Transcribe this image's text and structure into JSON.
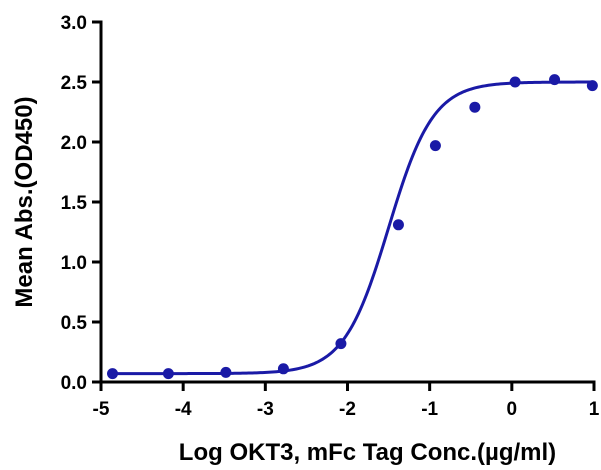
{
  "chart_data": {
    "type": "scatter",
    "title": "",
    "xlabel": "Log OKT3, mFc Tag Conc.(µg/ml)",
    "ylabel": "Mean Abs.(OD450)",
    "xlim": [
      -5,
      1
    ],
    "ylim": [
      0,
      3.0
    ],
    "x_ticks": [
      "-5",
      "-4",
      "-3",
      "-2",
      "-1",
      "0",
      "1"
    ],
    "y_ticks": [
      "0.0",
      "0.5",
      "1.0",
      "1.5",
      "2.0",
      "2.5",
      "3.0"
    ],
    "grid": false,
    "legend": "none",
    "color": "#1a1aa6",
    "series": [
      {
        "x": [
          -4.86,
          -4.18,
          -3.48,
          -2.78,
          -2.08,
          -1.38,
          -0.93,
          -0.45,
          0.04,
          0.52,
          0.98
        ],
        "y": [
          0.07,
          0.07,
          0.08,
          0.11,
          0.32,
          1.31,
          1.97,
          2.29,
          2.5,
          2.52,
          2.47
        ]
      }
    ],
    "fit_curve": {
      "model": "4PL",
      "bottom": 0.07,
      "top": 2.5,
      "logEC50": -1.5,
      "hill": 1.6
    }
  }
}
